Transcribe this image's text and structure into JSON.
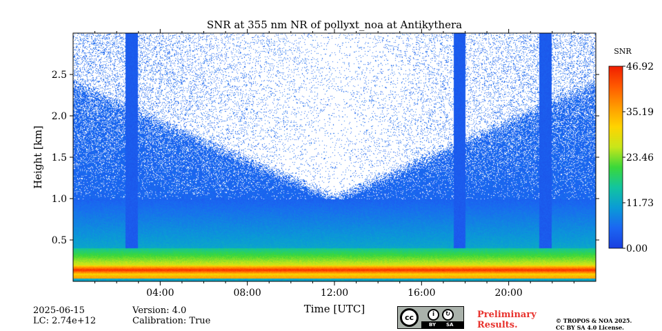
{
  "chart_data": {
    "type": "heatmap",
    "title": "SNR at 355 nm NR of pollyxt_noa at Antikythera",
    "xlabel": "Time [UTC]",
    "ylabel": "Height [km]",
    "xlim_hours": [
      0,
      24
    ],
    "ylim_km": [
      0,
      3.0
    ],
    "x_ticks": [
      {
        "value": 4,
        "label": "04:00"
      },
      {
        "value": 8,
        "label": "08:00"
      },
      {
        "value": 12,
        "label": "12:00"
      },
      {
        "value": 16,
        "label": "16:00"
      },
      {
        "value": 20,
        "label": "20:00"
      }
    ],
    "y_ticks": [
      {
        "value": 0.5,
        "label": "0.5"
      },
      {
        "value": 1.0,
        "label": "1.0"
      },
      {
        "value": 1.5,
        "label": "1.5"
      },
      {
        "value": 2.0,
        "label": "2.0"
      },
      {
        "value": 2.5,
        "label": "2.5"
      }
    ],
    "colorbar": {
      "label": "SNR",
      "min": 0.0,
      "max": 46.92,
      "ticks": [
        {
          "value": 0.0,
          "label": "0.00"
        },
        {
          "value": 11.73,
          "label": "11.73"
        },
        {
          "value": 23.46,
          "label": "23.46"
        },
        {
          "value": 35.19,
          "label": "35.19"
        },
        {
          "value": 46.92,
          "label": "46.92"
        }
      ],
      "colors": [
        "#1a3fe0",
        "#1b66f2",
        "#0a9bd6",
        "#12c4a0",
        "#3ad83a",
        "#c8e61a",
        "#ffd400",
        "#ff9a00",
        "#ff5a00",
        "#f01e00"
      ]
    },
    "features": {
      "dense_signal_top_km": 1.0,
      "strong_layer_km": [
        0.08,
        0.2
      ],
      "night_high_snr_windows_hours": [
        [
          2.4,
          2.95
        ],
        [
          17.45,
          18.0
        ],
        [
          21.4,
          21.95
        ]
      ]
    }
  },
  "footer": {
    "date": "2025-06-15",
    "lc": "LC: 2.74e+12",
    "version": "Version: 4.0",
    "calibration": "Calibration: True",
    "preliminary_line1": "Preliminary",
    "preliminary_line2": "Results.",
    "copyright_line1": "© TROPOS & NOA 2025.",
    "copyright_line2": "CC BY SA 4.0 License.",
    "cc_badge": {
      "cc": "cc",
      "by": "BY",
      "sa": "SA"
    }
  }
}
